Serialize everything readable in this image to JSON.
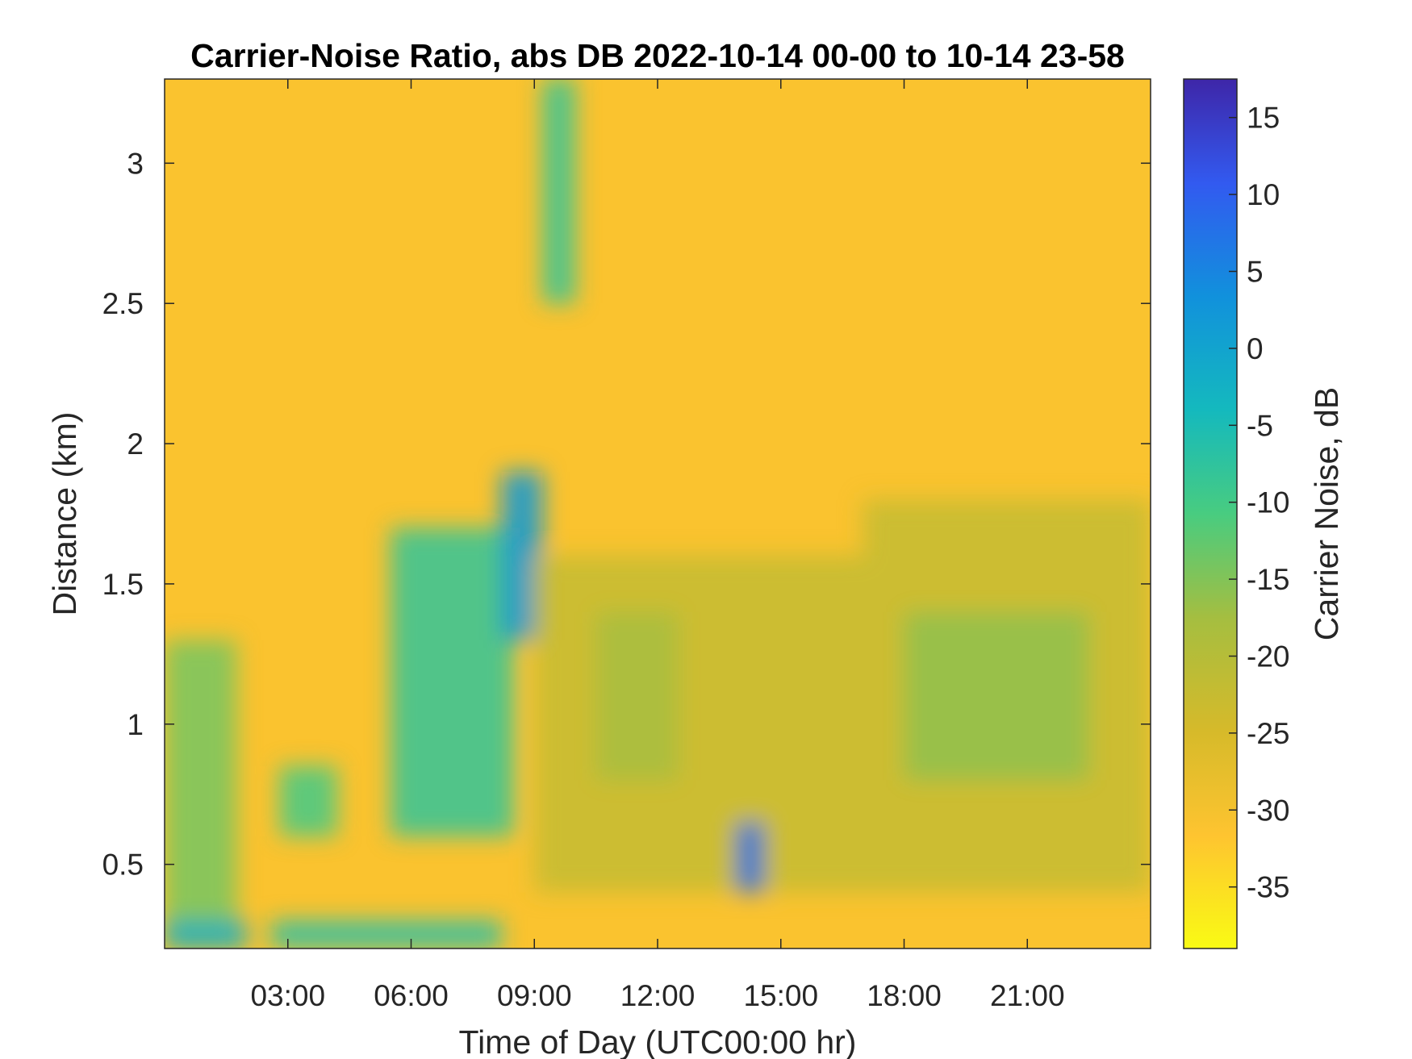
{
  "chart_data": {
    "type": "heatmap",
    "title": "Carrier-Noise Ratio, abs DB 2022-10-14 00-00 to 10-14 23-58",
    "xlabel": "Time of Day (UTC00:00 hr)",
    "ylabel": "Distance (km)",
    "colorbar_label": "Carrier Noise, dB",
    "x_unit": "hours",
    "xlim": [
      0,
      24
    ],
    "ylim": [
      0.2,
      3.3
    ],
    "clim": [
      -39,
      17.5
    ],
    "colormap": "parula-reversed",
    "x_ticks": [
      {
        "value": 3,
        "label": "03:00"
      },
      {
        "value": 6,
        "label": "06:00"
      },
      {
        "value": 9,
        "label": "09:00"
      },
      {
        "value": 12,
        "label": "12:00"
      },
      {
        "value": 15,
        "label": "15:00"
      },
      {
        "value": 18,
        "label": "18:00"
      },
      {
        "value": 21,
        "label": "21:00"
      }
    ],
    "y_ticks": [
      {
        "value": 0.5,
        "label": "0.5"
      },
      {
        "value": 1,
        "label": "1"
      },
      {
        "value": 1.5,
        "label": "1.5"
      },
      {
        "value": 2,
        "label": "2"
      },
      {
        "value": 2.5,
        "label": "2.5"
      },
      {
        "value": 3,
        "label": "3"
      }
    ],
    "colorbar_ticks": [
      {
        "value": 15,
        "label": "15"
      },
      {
        "value": 10,
        "label": "10"
      },
      {
        "value": 5,
        "label": "5"
      },
      {
        "value": 0,
        "label": "0"
      },
      {
        "value": -5,
        "label": "-5"
      },
      {
        "value": -10,
        "label": "-10"
      },
      {
        "value": -15,
        "label": "-15"
      },
      {
        "value": -20,
        "label": "-20"
      },
      {
        "value": -25,
        "label": "-25"
      },
      {
        "value": -30,
        "label": "-30"
      },
      {
        "value": -35,
        "label": "-35"
      }
    ],
    "background_cnr_db": -31,
    "features": [
      {
        "t": [
          0.0,
          1.75
        ],
        "d": [
          0.2,
          1.3
        ],
        "cnr": -14
      },
      {
        "t": [
          0.0,
          2.0
        ],
        "d": [
          0.2,
          0.3
        ],
        "cnr": -2
      },
      {
        "t": [
          2.6,
          8.2
        ],
        "d": [
          0.2,
          0.3
        ],
        "cnr": -6
      },
      {
        "t": [
          2.8,
          4.2
        ],
        "d": [
          0.6,
          0.85
        ],
        "cnr": -10
      },
      {
        "t": [
          5.5,
          8.5
        ],
        "d": [
          0.6,
          1.7
        ],
        "cnr": -8
      },
      {
        "t": [
          8.2,
          9.2
        ],
        "d": [
          1.3,
          1.9
        ],
        "cnr": 2
      },
      {
        "t": [
          9.2,
          10.0
        ],
        "d": [
          2.5,
          3.3
        ],
        "cnr": -8
      },
      {
        "t": [
          9.0,
          17.0
        ],
        "d": [
          0.4,
          1.6
        ],
        "cnr": -22
      },
      {
        "t": [
          10.5,
          12.5
        ],
        "d": [
          0.8,
          1.4
        ],
        "cnr": -18
      },
      {
        "t": [
          13.9,
          14.6
        ],
        "d": [
          0.4,
          0.65
        ],
        "cnr": 8
      },
      {
        "t": [
          17.0,
          24.0
        ],
        "d": [
          0.4,
          1.8
        ],
        "cnr": -22
      },
      {
        "t": [
          18.0,
          22.5
        ],
        "d": [
          0.8,
          1.4
        ],
        "cnr": -16
      }
    ]
  }
}
